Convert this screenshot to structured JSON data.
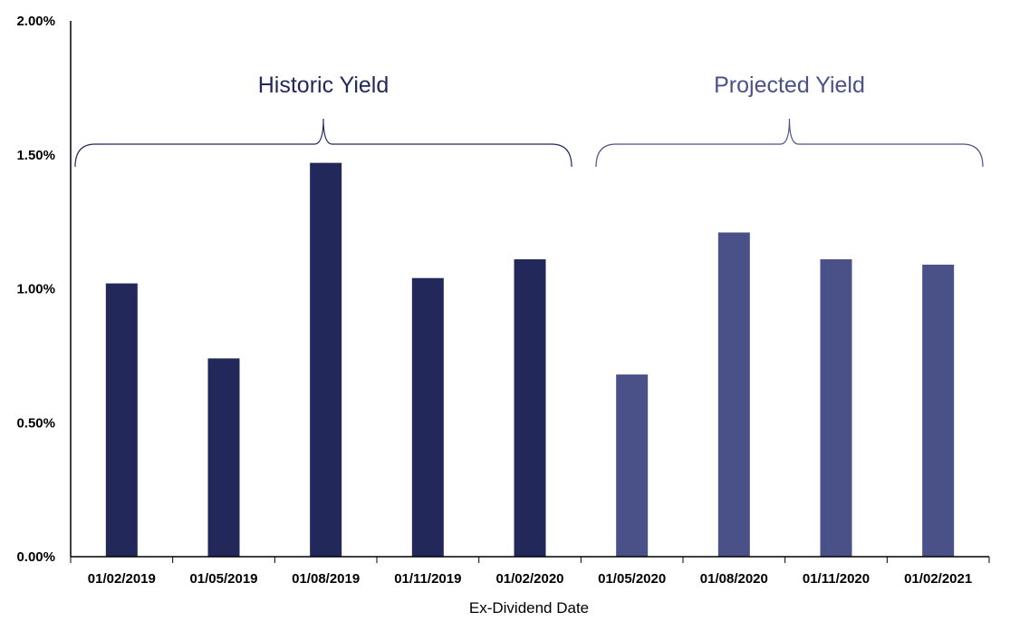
{
  "chart_data": {
    "type": "bar",
    "title": "",
    "xlabel": "Ex-Dividend Date",
    "ylabel": "",
    "ylim": [
      0,
      0.02
    ],
    "yticks": [
      "0.00%",
      "0.50%",
      "1.00%",
      "1.50%",
      "2.00%"
    ],
    "ytick_values": [
      0,
      0.005,
      0.01,
      0.015,
      0.02
    ],
    "categories": [
      "01/02/2019",
      "01/05/2019",
      "01/08/2019",
      "01/11/2019",
      "01/02/2020",
      "01/05/2020",
      "01/08/2020",
      "01/11/2020",
      "01/02/2021"
    ],
    "values": [
      0.0102,
      0.0074,
      0.0147,
      0.0104,
      0.0111,
      0.0068,
      0.0121,
      0.0111,
      0.0109
    ],
    "groups": [
      {
        "label": "Historic Yield",
        "start": 0,
        "end": 4,
        "color": "#22285a"
      },
      {
        "label": "Projected Yield",
        "start": 5,
        "end": 8,
        "color": "#4a5189"
      }
    ],
    "grid": false,
    "legend": "none"
  }
}
